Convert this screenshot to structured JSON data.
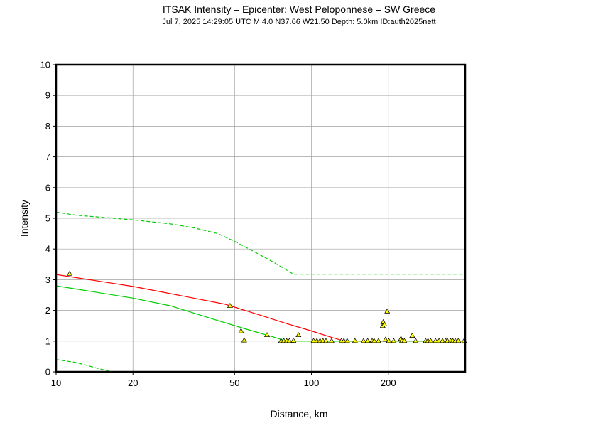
{
  "chart_data": {
    "type": "scatter",
    "title": "ITSAK Intensity –  Epicenter: West Peloponnese – SW Greece",
    "subtitle": "Jul  7, 2025 14:29:05 UTC   M 4.0   N37.66 W21.50   Depth: 5.0km   ID:auth2025nett",
    "xlabel": "Distance, km",
    "ylabel": "Intensity",
    "xscale": "log",
    "xlim": [
      10,
      400
    ],
    "ylim": [
      0,
      10
    ],
    "xticks": [
      10,
      20,
      50,
      100,
      200
    ],
    "yticks": [
      0,
      1,
      2,
      3,
      4,
      5,
      6,
      7,
      8,
      9,
      10
    ],
    "grid": true,
    "colors": {
      "red_line": "#ff0000",
      "green_line": "#00cc00",
      "points": "#ffff00"
    },
    "lines": [
      {
        "style": "solid",
        "color": "#ff0000",
        "x": [
          10,
          20,
          30,
          46,
          60,
          80,
          100,
          120,
          135,
          400
        ],
        "y": [
          3.17,
          2.78,
          2.5,
          2.2,
          1.9,
          1.57,
          1.33,
          1.12,
          1.0,
          1.0
        ]
      },
      {
        "style": "solid",
        "color": "#00cc00",
        "x": [
          10,
          20,
          28,
          40,
          55,
          70,
          80,
          400
        ],
        "y": [
          2.8,
          2.4,
          2.15,
          1.75,
          1.4,
          1.15,
          1.0,
          1.0
        ]
      },
      {
        "style": "dashed",
        "color": "#00cc00",
        "x": [
          10,
          12,
          20,
          28,
          35,
          43,
          50,
          60,
          70,
          85,
          400
        ],
        "y": [
          5.2,
          5.1,
          4.95,
          4.82,
          4.68,
          4.5,
          4.25,
          3.9,
          3.6,
          3.18,
          3.18
        ]
      },
      {
        "style": "dashed",
        "color": "#00cc00",
        "x": [
          10,
          12,
          14,
          16.5
        ],
        "y": [
          0.4,
          0.3,
          0.15,
          0.0
        ]
      }
    ],
    "points": [
      {
        "x": 11.3,
        "y": 3.2
      },
      {
        "x": 48,
        "y": 2.15
      },
      {
        "x": 53,
        "y": 1.33
      },
      {
        "x": 54.5,
        "y": 1.03
      },
      {
        "x": 67,
        "y": 1.2
      },
      {
        "x": 76,
        "y": 1.01
      },
      {
        "x": 78,
        "y": 1.01
      },
      {
        "x": 80,
        "y": 1.01
      },
      {
        "x": 82,
        "y": 1.01
      },
      {
        "x": 85,
        "y": 1.02
      },
      {
        "x": 89,
        "y": 1.2
      },
      {
        "x": 102,
        "y": 1.01
      },
      {
        "x": 105,
        "y": 1.01
      },
      {
        "x": 108,
        "y": 1.01
      },
      {
        "x": 111,
        "y": 1.01
      },
      {
        "x": 114,
        "y": 1.01
      },
      {
        "x": 120,
        "y": 1.01
      },
      {
        "x": 131,
        "y": 1.01
      },
      {
        "x": 134,
        "y": 1.01
      },
      {
        "x": 138,
        "y": 1.01
      },
      {
        "x": 148,
        "y": 1.01
      },
      {
        "x": 160,
        "y": 1.01
      },
      {
        "x": 166,
        "y": 1.01
      },
      {
        "x": 173,
        "y": 1.01
      },
      {
        "x": 176,
        "y": 1.01
      },
      {
        "x": 183,
        "y": 1.01
      },
      {
        "x": 191,
        "y": 1.62
      },
      {
        "x": 190,
        "y": 1.5
      },
      {
        "x": 193,
        "y": 1.55
      },
      {
        "x": 195,
        "y": 1.05
      },
      {
        "x": 198,
        "y": 1.97
      },
      {
        "x": 201,
        "y": 1.01
      },
      {
        "x": 210,
        "y": 1.01
      },
      {
        "x": 224,
        "y": 1.08
      },
      {
        "x": 226,
        "y": 1.01
      },
      {
        "x": 231,
        "y": 1.01
      },
      {
        "x": 248,
        "y": 1.18
      },
      {
        "x": 256,
        "y": 1.01
      },
      {
        "x": 280,
        "y": 1.01
      },
      {
        "x": 286,
        "y": 1.01
      },
      {
        "x": 293,
        "y": 1.01
      },
      {
        "x": 306,
        "y": 1.01
      },
      {
        "x": 316,
        "y": 1.01
      },
      {
        "x": 326,
        "y": 1.01
      },
      {
        "x": 336,
        "y": 1.01
      },
      {
        "x": 341,
        "y": 1.01
      },
      {
        "x": 351,
        "y": 1.01
      },
      {
        "x": 358,
        "y": 1.01
      },
      {
        "x": 366,
        "y": 1.01
      },
      {
        "x": 376,
        "y": 1.01
      },
      {
        "x": 396,
        "y": 1.01
      }
    ]
  }
}
